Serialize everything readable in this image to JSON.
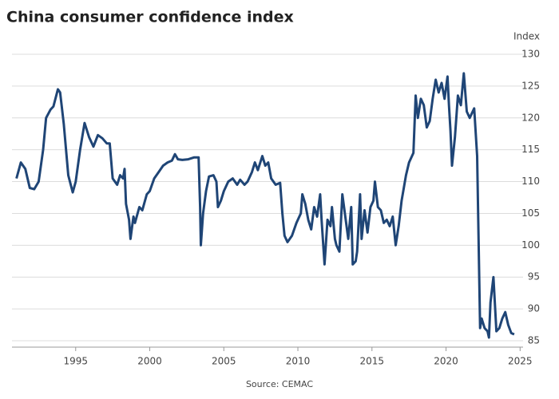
{
  "chart_data": {
    "type": "line",
    "title": "China consumer confidence index",
    "y_label": "Index",
    "source": "Source: CEMAC",
    "color": "#1f4576",
    "grid": true,
    "xlim": [
      1990.7,
      2025.2
    ],
    "xticks": [
      1995,
      2000,
      2005,
      2010,
      2015,
      2020,
      2025
    ],
    "ylim": [
      84,
      131
    ],
    "yticks": [
      85,
      90,
      95,
      100,
      105,
      110,
      115,
      120,
      125,
      130
    ],
    "x": [
      1991.0,
      1991.3,
      1991.6,
      1991.9,
      1992.2,
      1992.5,
      1992.8,
      1993.0,
      1993.3,
      1993.5,
      1993.8,
      1993.95,
      1994.2,
      1994.5,
      1994.8,
      1995.0,
      1995.3,
      1995.6,
      1995.9,
      1996.2,
      1996.5,
      1996.8,
      1997.1,
      1997.3,
      1997.5,
      1997.8,
      1998.0,
      1998.2,
      1998.3,
      1998.4,
      1998.6,
      1998.7,
      1998.9,
      1999.0,
      1999.3,
      1999.5,
      1999.8,
      2000.0,
      2000.3,
      2000.6,
      2000.9,
      2001.2,
      2001.5,
      2001.7,
      2001.9,
      2002.2,
      2002.6,
      2003.0,
      2003.3,
      2003.4,
      2003.45,
      2003.6,
      2003.8,
      2004.0,
      2004.3,
      2004.5,
      2004.6,
      2004.8,
      2005.0,
      2005.3,
      2005.6,
      2005.9,
      2006.1,
      2006.4,
      2006.6,
      2006.9,
      2007.1,
      2007.3,
      2007.6,
      2007.8,
      2008.0,
      2008.2,
      2008.5,
      2008.8,
      2008.95,
      2009.1,
      2009.3,
      2009.6,
      2009.9,
      2010.2,
      2010.3,
      2010.5,
      2010.7,
      2010.9,
      2011.1,
      2011.3,
      2011.5,
      2011.6,
      2011.8,
      2012.0,
      2012.2,
      2012.3,
      2012.5,
      2012.6,
      2012.8,
      2013.0,
      2013.2,
      2013.4,
      2013.6,
      2013.7,
      2013.9,
      2014.0,
      2014.2,
      2014.3,
      2014.5,
      2014.7,
      2014.9,
      2015.1,
      2015.2,
      2015.4,
      2015.6,
      2015.8,
      2016.0,
      2016.2,
      2016.4,
      2016.6,
      2016.8,
      2017.0,
      2017.3,
      2017.5,
      2017.8,
      2017.95,
      2018.1,
      2018.3,
      2018.5,
      2018.7,
      2018.9,
      2019.1,
      2019.3,
      2019.5,
      2019.7,
      2019.9,
      2020.1,
      2020.2,
      2020.3,
      2020.4,
      2020.6,
      2020.8,
      2021.0,
      2021.2,
      2021.4,
      2021.6,
      2021.9,
      2022.1,
      2022.3,
      2022.4,
      2022.6,
      2022.8,
      2022.9,
      2023.0,
      2023.2,
      2023.4,
      2023.6,
      2023.8,
      2024.0,
      2024.2,
      2024.4,
      2024.6
    ],
    "values": [
      110.5,
      113,
      112,
      109,
      108.8,
      110,
      115,
      120,
      121.3,
      121.8,
      124.5,
      124,
      119,
      111,
      108.3,
      110,
      115,
      119.2,
      117,
      115.5,
      117.3,
      116.8,
      116,
      116,
      110.5,
      109.5,
      111,
      110.5,
      112,
      106.5,
      104,
      101,
      104.5,
      103.5,
      106,
      105.5,
      108,
      108.5,
      110.5,
      111.5,
      112.5,
      113,
      113.3,
      114.3,
      113.5,
      113.4,
      113.5,
      113.8,
      113.8,
      106,
      100,
      105,
      108.5,
      110.8,
      111,
      110,
      106,
      107,
      108.5,
      110,
      110.5,
      109.5,
      110.3,
      109.5,
      110,
      111.5,
      113,
      111.8,
      114,
      112.5,
      113,
      110.5,
      109.5,
      109.8,
      105,
      101.5,
      100.5,
      101.5,
      103.5,
      105,
      108,
      106.5,
      104,
      102.5,
      106,
      104.5,
      108,
      104,
      97,
      104,
      103,
      106,
      101,
      100,
      99,
      108,
      104.5,
      101,
      106,
      97,
      97.5,
      99,
      108,
      101,
      105.5,
      102,
      106,
      107,
      110,
      106,
      105.5,
      103.5,
      104,
      103,
      104.5,
      100,
      103,
      107,
      111,
      113,
      114.5,
      123.5,
      120,
      123,
      122,
      118.5,
      119.5,
      123,
      126,
      124,
      125.5,
      123,
      126.5,
      122,
      118,
      112.5,
      117,
      123.5,
      122,
      127,
      121,
      120,
      121.5,
      114,
      87,
      88.5,
      87,
      86.5,
      85.5,
      91,
      95,
      86.5,
      87,
      88.5,
      89.5,
      87.5,
      86.2,
      86
    ]
  }
}
